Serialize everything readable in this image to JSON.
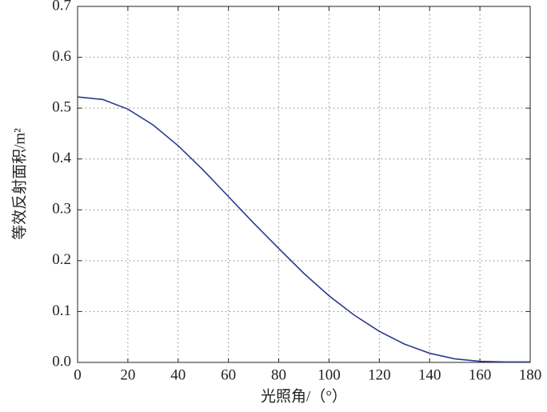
{
  "chart_data": {
    "type": "line",
    "x_label": "光照角/（°）",
    "y_label": "等效反射面积/m²",
    "x": [
      0,
      10,
      20,
      30,
      40,
      50,
      60,
      70,
      80,
      90,
      100,
      110,
      120,
      130,
      140,
      150,
      160,
      170,
      180
    ],
    "series": [
      {
        "color": "#2b3a8f",
        "values": [
          0.522,
          0.517,
          0.498,
          0.467,
          0.426,
          0.378,
          0.326,
          0.274,
          0.224,
          0.175,
          0.131,
          0.093,
          0.061,
          0.036,
          0.018,
          0.007,
          0.002,
          0.001,
          0.001
        ]
      }
    ],
    "xlim": [
      0,
      180
    ],
    "xticks": [
      0,
      20,
      40,
      60,
      80,
      100,
      120,
      140,
      160,
      180
    ],
    "ylim": [
      0,
      0.7
    ],
    "yticks": [
      {
        "value": 0,
        "label": "0.0"
      },
      0.1,
      0.2,
      0.3,
      0.4,
      0.5,
      0.6,
      0.7
    ],
    "grid": true
  }
}
